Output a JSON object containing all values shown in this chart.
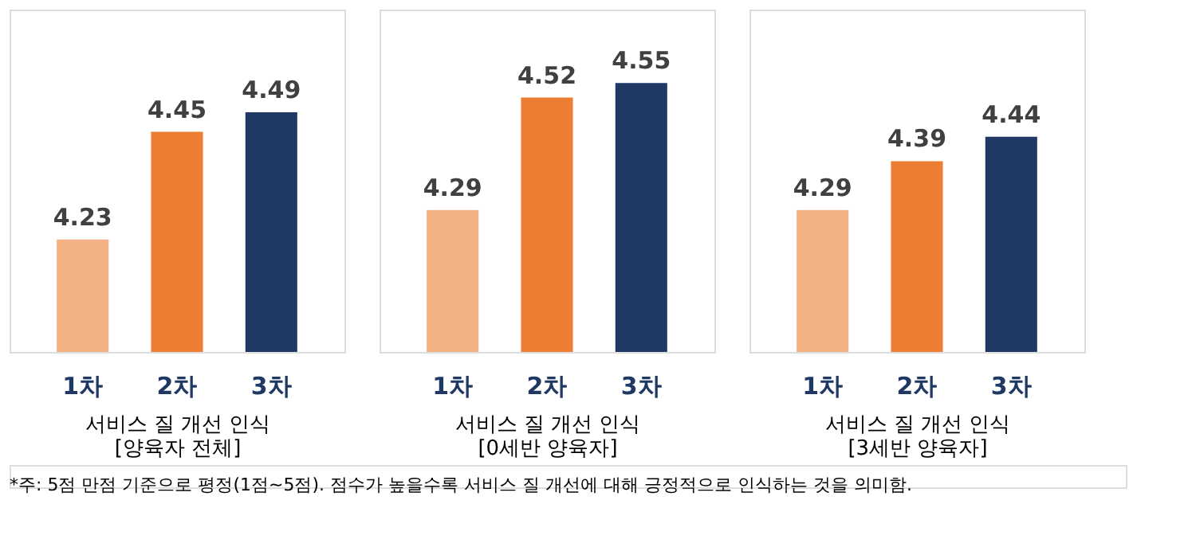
{
  "chart_data": [
    {
      "type": "bar",
      "categories": [
        "1차",
        "2차",
        "3차"
      ],
      "values": [
        4.23,
        4.45,
        4.49
      ],
      "colors": [
        "#f4b183",
        "#ed7d31",
        "#203864"
      ],
      "data_labels": true,
      "ylim": [
        4.0,
        4.7
      ],
      "tick_labels": "x",
      "xlabel": "서비스 질 개선 인식\n[양육자 전체]",
      "annotations": [
        "*주: 5점 만점 기준으로 평정(1점~5점). 점수가 높을수록 서비스 질 개선에 대해 긍정적으로 인식하는 것을 의미함."
      ]
    },
    {
      "type": "bar",
      "categories": [
        "1차",
        "2차",
        "3차"
      ],
      "values": [
        4.29,
        4.52,
        4.55
      ],
      "colors": [
        "#f4b183",
        "#ed7d31",
        "#203864"
      ],
      "data_labels": true,
      "ylim": [
        4.0,
        4.7
      ],
      "tick_labels": "x",
      "xlabel": "서비스 질 개선 인식\n[0세반 양육자]"
    },
    {
      "type": "bar",
      "categories": [
        "1차",
        "2차",
        "3차"
      ],
      "values": [
        4.29,
        4.39,
        4.44
      ],
      "colors": [
        "#f4b183",
        "#ed7d31",
        "#203864"
      ],
      "data_labels": true,
      "ylim": [
        4.0,
        4.7
      ],
      "tick_labels": "x",
      "xlabel": "서비스 질 개선 인식\n[3세반 양육자]"
    }
  ]
}
